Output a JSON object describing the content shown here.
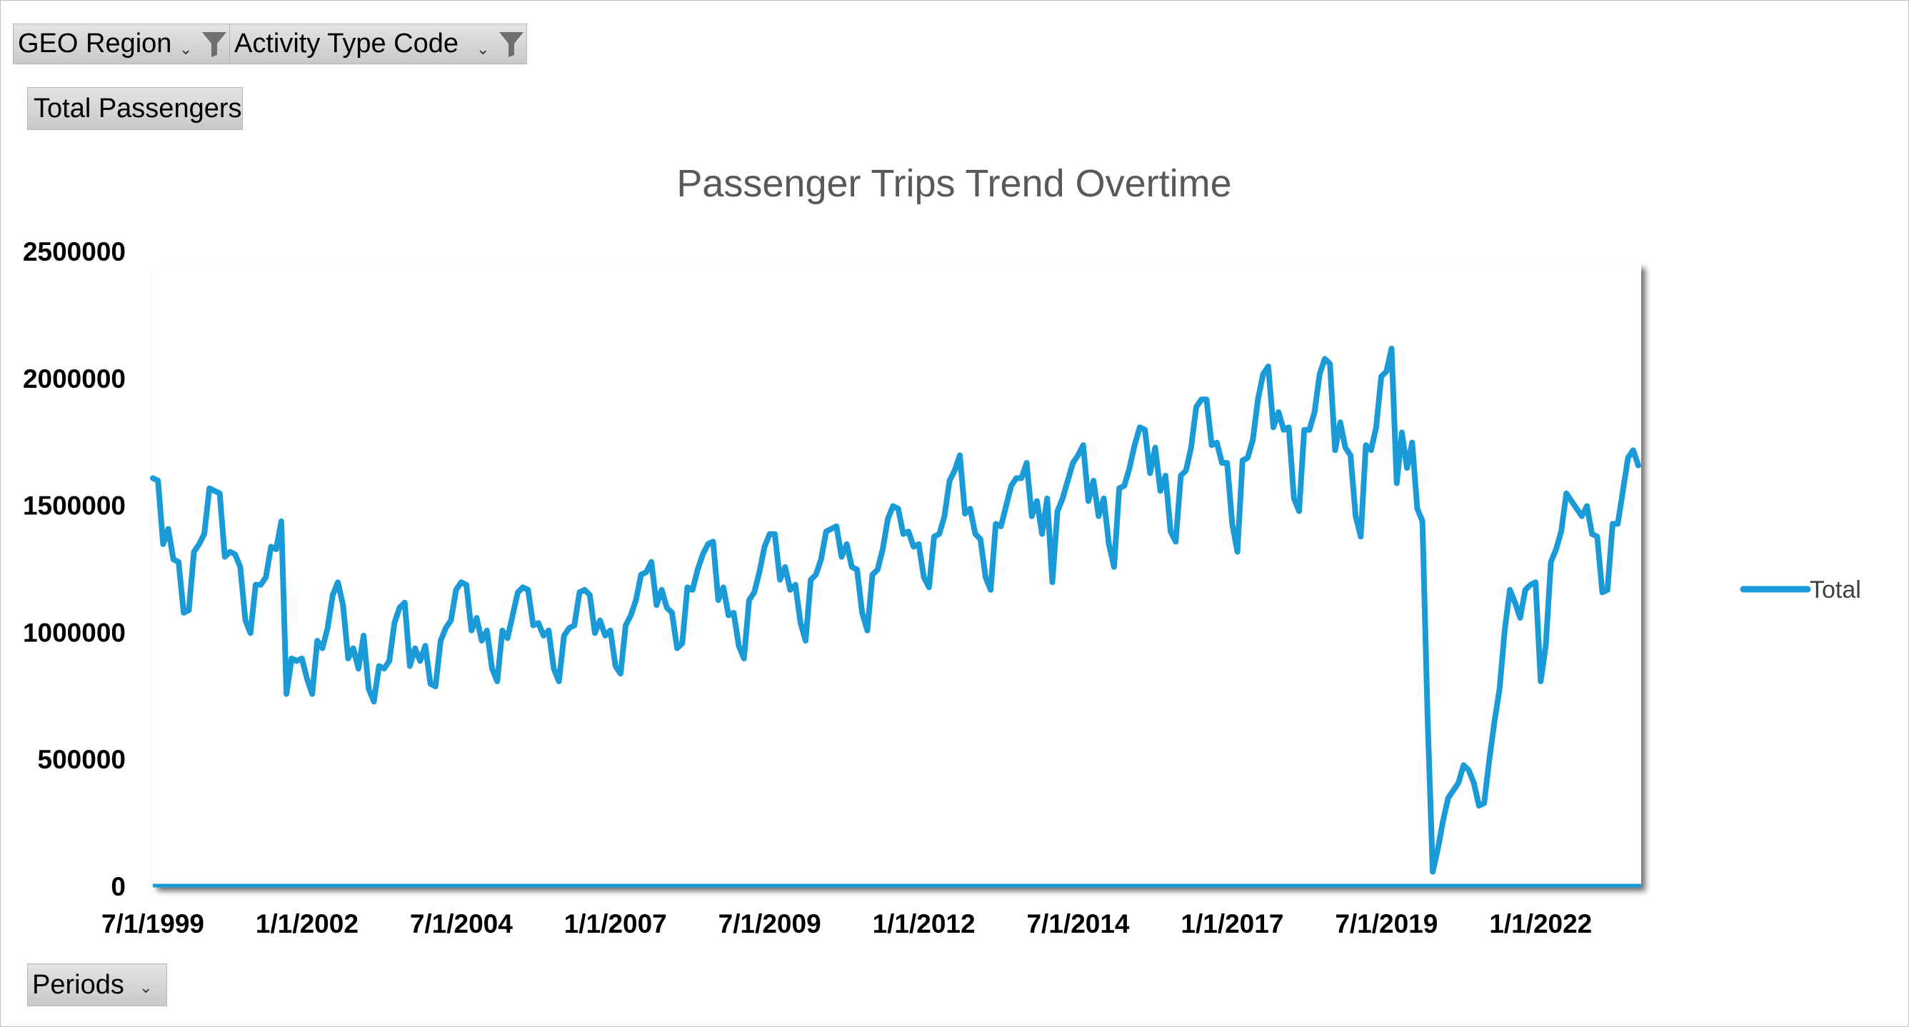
{
  "filters": {
    "geo_region": {
      "label": "GEO Region"
    },
    "activity_type_code": {
      "label": "Activity Type Code"
    }
  },
  "values_button": {
    "label": "Total Passengers"
  },
  "axis_button": {
    "label": "Periods"
  },
  "icons": {
    "filter": "funnel-icon",
    "dropdown": "chevron-down-icon"
  },
  "colors": {
    "series": "#1a9bd7",
    "axis": "#000000",
    "button_bg": "#d6d6d6"
  },
  "chart_data": {
    "type": "line",
    "title": "Passenger Trips Trend Overtime",
    "xlabel": "",
    "ylabel": "",
    "ylim": [
      0,
      2500000
    ],
    "y_ticks": [
      0,
      500000,
      1000000,
      1500000,
      2000000,
      2500000
    ],
    "y_tick_labels": [
      "0",
      "500000",
      "1000000",
      "1500000",
      "2000000",
      "2500000"
    ],
    "x_tick_labels": [
      "7/1/1999",
      "1/1/2002",
      "7/1/2004",
      "1/1/2007",
      "7/1/2009",
      "1/1/2012",
      "7/1/2014",
      "1/1/2017",
      "7/1/2019",
      "1/1/2022"
    ],
    "legend_position": "right",
    "grid": false,
    "series": [
      {
        "name": "Total",
        "start": "7/1/1999",
        "frequency": "monthly",
        "values": [
          1610000,
          1600000,
          1350000,
          1410000,
          1290000,
          1280000,
          1080000,
          1090000,
          1320000,
          1350000,
          1390000,
          1570000,
          1560000,
          1550000,
          1300000,
          1320000,
          1310000,
          1260000,
          1050000,
          1000000,
          1190000,
          1190000,
          1220000,
          1340000,
          1330000,
          1440000,
          760000,
          900000,
          890000,
          900000,
          820000,
          760000,
          970000,
          940000,
          1020000,
          1150000,
          1200000,
          1110000,
          900000,
          940000,
          860000,
          990000,
          780000,
          730000,
          870000,
          860000,
          890000,
          1040000,
          1100000,
          1120000,
          870000,
          940000,
          890000,
          950000,
          800000,
          790000,
          970000,
          1020000,
          1050000,
          1170000,
          1200000,
          1190000,
          1010000,
          1060000,
          970000,
          1010000,
          860000,
          810000,
          1010000,
          980000,
          1070000,
          1160000,
          1180000,
          1170000,
          1030000,
          1040000,
          990000,
          1010000,
          860000,
          810000,
          990000,
          1020000,
          1030000,
          1160000,
          1170000,
          1150000,
          1000000,
          1050000,
          990000,
          1010000,
          870000,
          840000,
          1030000,
          1070000,
          1130000,
          1230000,
          1240000,
          1280000,
          1110000,
          1170000,
          1100000,
          1080000,
          940000,
          960000,
          1180000,
          1170000,
          1250000,
          1310000,
          1350000,
          1360000,
          1130000,
          1180000,
          1070000,
          1080000,
          950000,
          900000,
          1130000,
          1160000,
          1240000,
          1340000,
          1390000,
          1390000,
          1210000,
          1260000,
          1170000,
          1190000,
          1040000,
          970000,
          1210000,
          1230000,
          1290000,
          1400000,
          1410000,
          1420000,
          1300000,
          1350000,
          1260000,
          1250000,
          1080000,
          1010000,
          1230000,
          1250000,
          1330000,
          1450000,
          1500000,
          1490000,
          1390000,
          1400000,
          1340000,
          1350000,
          1220000,
          1180000,
          1380000,
          1390000,
          1460000,
          1600000,
          1640000,
          1700000,
          1470000,
          1490000,
          1390000,
          1370000,
          1220000,
          1170000,
          1430000,
          1420000,
          1500000,
          1580000,
          1610000,
          1610000,
          1670000,
          1460000,
          1520000,
          1390000,
          1530000,
          1200000,
          1480000,
          1530000,
          1600000,
          1670000,
          1700000,
          1740000,
          1520000,
          1600000,
          1460000,
          1530000,
          1350000,
          1260000,
          1570000,
          1580000,
          1650000,
          1740000,
          1810000,
          1800000,
          1630000,
          1730000,
          1560000,
          1620000,
          1400000,
          1360000,
          1620000,
          1640000,
          1730000,
          1890000,
          1920000,
          1920000,
          1740000,
          1750000,
          1670000,
          1670000,
          1430000,
          1320000,
          1680000,
          1690000,
          1760000,
          1920000,
          2020000,
          2050000,
          1810000,
          1870000,
          1800000,
          1810000,
          1530000,
          1480000,
          1800000,
          1800000,
          1870000,
          2020000,
          2080000,
          2060000,
          1720000,
          1830000,
          1730000,
          1700000,
          1460000,
          1380000,
          1740000,
          1720000,
          1810000,
          2010000,
          2030000,
          2120000,
          1590000,
          1790000,
          1650000,
          1750000,
          1490000,
          1440000,
          670000,
          60000,
          150000,
          260000,
          350000,
          380000,
          410000,
          480000,
          460000,
          410000,
          320000,
          330000,
          500000,
          650000,
          780000,
          1010000,
          1170000,
          1120000,
          1060000,
          1170000,
          1190000,
          1200000,
          810000,
          950000,
          1280000,
          1330000,
          1400000,
          1550000,
          1520000,
          1490000,
          1460000,
          1500000,
          1390000,
          1380000,
          1160000,
          1170000,
          1430000,
          1430000,
          1560000,
          1690000,
          1720000,
          1660000
        ]
      }
    ]
  }
}
